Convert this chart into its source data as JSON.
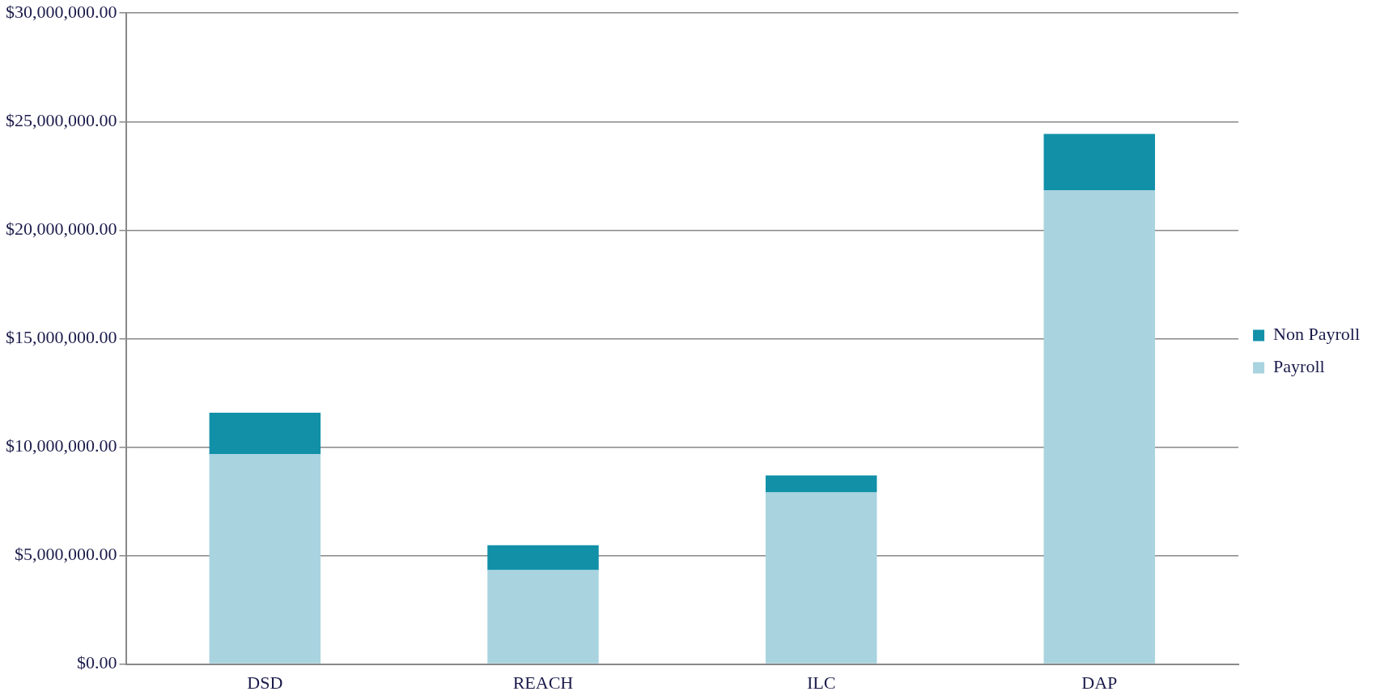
{
  "chart_data": {
    "type": "bar",
    "stacked": true,
    "categories": [
      "DSD",
      "REACH",
      "ILC",
      "DAP"
    ],
    "series": [
      {
        "name": "Payroll",
        "color": "#a8d3df",
        "values": [
          9680000,
          4330000,
          7910000,
          21840000
        ]
      },
      {
        "name": "Non Payroll",
        "color": "#1190a8",
        "values": [
          1900000,
          1150000,
          780000,
          2590000
        ]
      }
    ],
    "ylim": [
      0,
      30000000
    ],
    "yticks": [
      {
        "value": 0,
        "label": "$0.00"
      },
      {
        "value": 5000000,
        "label": "$5,000,000.00"
      },
      {
        "value": 10000000,
        "label": "$10,000,000.00"
      },
      {
        "value": 15000000,
        "label": "$15,000,000.00"
      },
      {
        "value": 20000000,
        "label": "$20,000,000.00"
      },
      {
        "value": 25000000,
        "label": "$25,000,000.00"
      },
      {
        "value": 30000000,
        "label": "$30,000,000.00"
      }
    ],
    "grid": "y",
    "legend": "right"
  }
}
